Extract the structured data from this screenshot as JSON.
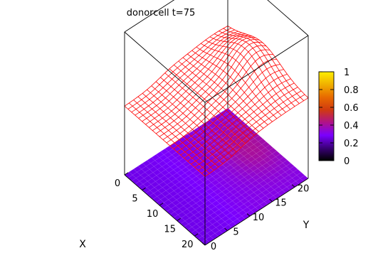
{
  "chart_data": {
    "type": "surface",
    "title": "donorcell t=75",
    "xlabel": "X",
    "ylabel": "Y",
    "x_ticks": [
      "0",
      "5",
      "10",
      "15",
      "20"
    ],
    "y_ticks": [
      "0",
      "5",
      "10",
      "15",
      "20"
    ],
    "xlim": [
      0,
      23
    ],
    "ylim": [
      0,
      23
    ],
    "zlim": [
      0,
      1
    ],
    "colorbar": {
      "ticks": [
        "0",
        "0.2",
        "0.4",
        "0.6",
        "0.8",
        "1"
      ],
      "palette": [
        "#000000",
        "#3a0078",
        "#7a00ff",
        "#b0128a",
        "#d03a10",
        "#e86a00",
        "#f0b000",
        "#ffee00"
      ],
      "placement": "right"
    },
    "grid_n": 24,
    "surface": {
      "description_values": "mesh heights across X and Y",
      "peak_x": 10,
      "peak_y": 20,
      "base_level": 0.48,
      "peak_level": 0.72,
      "color": "#ff0000"
    },
    "floor": {
      "colormap_range": [
        0.35,
        0.55
      ]
    }
  }
}
